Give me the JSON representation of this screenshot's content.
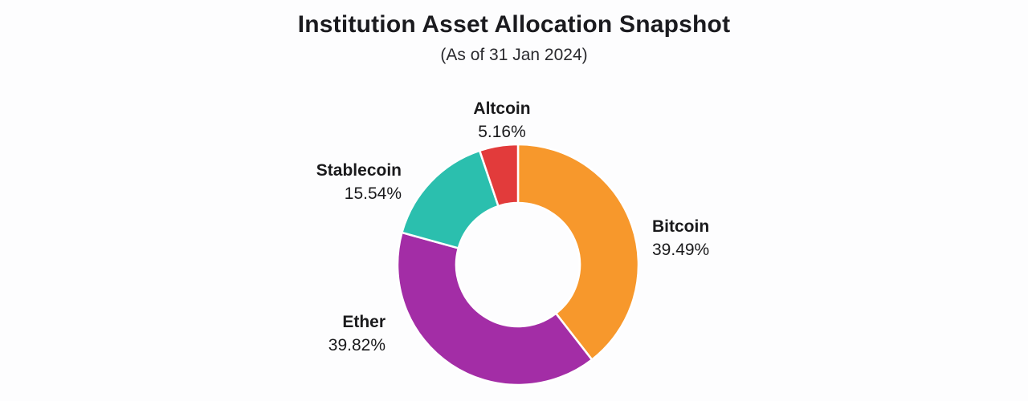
{
  "header": {
    "title": "Institution Asset Allocation Snapshot",
    "subtitle": "(As of 31 Jan 2024)"
  },
  "chart_data": {
    "type": "pie",
    "variant": "donut",
    "title": "Institution Asset Allocation Snapshot",
    "subtitle": "(As of 31 Jan 2024)",
    "start_angle_deg": 0,
    "direction": "clockwise",
    "hole_color": "#ffffff",
    "segments": [
      {
        "label": "Bitcoin",
        "value": 39.49,
        "display": "39.49%",
        "color": "#F7982C"
      },
      {
        "label": "Ether",
        "value": 39.82,
        "display": "39.82%",
        "color": "#A32DA6"
      },
      {
        "label": "Stablecoin",
        "value": 15.54,
        "display": "15.54%",
        "color": "#2BBFAE"
      },
      {
        "label": "Altcoin",
        "value": 5.16,
        "display": "5.16%",
        "color": "#E23B3B"
      }
    ]
  }
}
